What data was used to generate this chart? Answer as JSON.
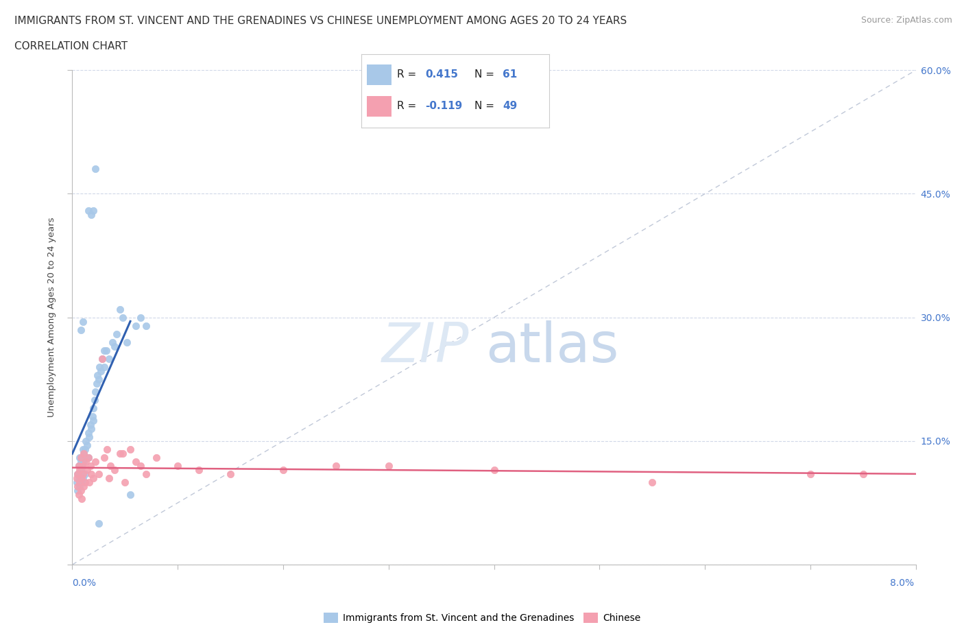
{
  "title_line1": "IMMIGRANTS FROM ST. VINCENT AND THE GRENADINES VS CHINESE UNEMPLOYMENT AMONG AGES 20 TO 24 YEARS",
  "title_line2": "CORRELATION CHART",
  "source_text": "Source: ZipAtlas.com",
  "ylabel": "Unemployment Among Ages 20 to 24 years",
  "xlim": [
    0.0,
    8.0
  ],
  "ylim": [
    0.0,
    60.0
  ],
  "yticks": [
    0,
    15,
    30,
    45,
    60
  ],
  "ytick_labels": [
    "",
    "15.0%",
    "30.0%",
    "45.0%",
    "60.0%"
  ],
  "blue_color": "#a8c8e8",
  "pink_color": "#f4a0b0",
  "blue_trend_color": "#3060b0",
  "pink_trend_color": "#e06080",
  "diagonal_color": "#c0c8d8",
  "legend_label_blue": "Immigrants from St. Vincent and the Grenadines",
  "legend_label_pink": "Chinese",
  "blue_R": "0.415",
  "blue_N": "61",
  "pink_R": "-0.119",
  "pink_N": "49",
  "blue_scatter_x": [
    0.04,
    0.05,
    0.05,
    0.06,
    0.06,
    0.07,
    0.07,
    0.07,
    0.08,
    0.08,
    0.08,
    0.09,
    0.09,
    0.09,
    0.1,
    0.1,
    0.1,
    0.11,
    0.11,
    0.12,
    0.12,
    0.13,
    0.13,
    0.14,
    0.15,
    0.15,
    0.16,
    0.17,
    0.18,
    0.19,
    0.2,
    0.2,
    0.21,
    0.22,
    0.23,
    0.24,
    0.25,
    0.26,
    0.27,
    0.28,
    0.3,
    0.32,
    0.35,
    0.38,
    0.4,
    0.42,
    0.45,
    0.48,
    0.52,
    0.55,
    0.6,
    0.65,
    0.7,
    0.2,
    0.22,
    0.15,
    0.18,
    0.1,
    0.08,
    0.3,
    0.25
  ],
  "blue_scatter_y": [
    10.0,
    11.0,
    9.0,
    10.5,
    12.0,
    11.0,
    13.0,
    9.5,
    10.0,
    12.5,
    11.5,
    10.0,
    13.0,
    12.0,
    11.0,
    14.0,
    10.5,
    13.5,
    12.5,
    14.0,
    11.0,
    13.0,
    15.0,
    14.5,
    16.0,
    13.0,
    15.5,
    17.0,
    16.5,
    18.0,
    19.0,
    17.5,
    20.0,
    21.0,
    22.0,
    23.0,
    22.5,
    24.0,
    23.5,
    25.0,
    24.0,
    26.0,
    25.0,
    27.0,
    26.5,
    28.0,
    31.0,
    30.0,
    27.0,
    8.5,
    29.0,
    30.0,
    29.0,
    43.0,
    48.0,
    43.0,
    42.5,
    29.5,
    28.5,
    26.0,
    5.0
  ],
  "pink_scatter_x": [
    0.04,
    0.05,
    0.05,
    0.06,
    0.06,
    0.07,
    0.07,
    0.08,
    0.08,
    0.09,
    0.09,
    0.1,
    0.1,
    0.11,
    0.11,
    0.12,
    0.13,
    0.14,
    0.15,
    0.16,
    0.17,
    0.18,
    0.2,
    0.22,
    0.25,
    0.28,
    0.3,
    0.33,
    0.36,
    0.4,
    0.45,
    0.5,
    0.55,
    0.6,
    0.7,
    0.8,
    1.0,
    1.2,
    1.5,
    2.0,
    2.5,
    3.0,
    4.0,
    5.5,
    7.0,
    7.5,
    0.35,
    0.48,
    0.65
  ],
  "pink_scatter_y": [
    10.5,
    11.0,
    9.5,
    8.5,
    12.0,
    11.5,
    10.0,
    9.0,
    13.0,
    10.5,
    8.0,
    12.0,
    11.0,
    9.5,
    13.5,
    10.0,
    12.5,
    11.5,
    13.0,
    10.0,
    12.0,
    11.0,
    10.5,
    12.5,
    11.0,
    25.0,
    13.0,
    14.0,
    12.0,
    11.5,
    13.5,
    10.0,
    14.0,
    12.5,
    11.0,
    13.0,
    12.0,
    11.5,
    11.0,
    11.5,
    12.0,
    12.0,
    11.5,
    10.0,
    11.0,
    11.0,
    10.5,
    13.5,
    12.0
  ],
  "title_fontsize": 11,
  "axis_label_fontsize": 9.5,
  "tick_fontsize": 10,
  "rn_fontsize": 11
}
